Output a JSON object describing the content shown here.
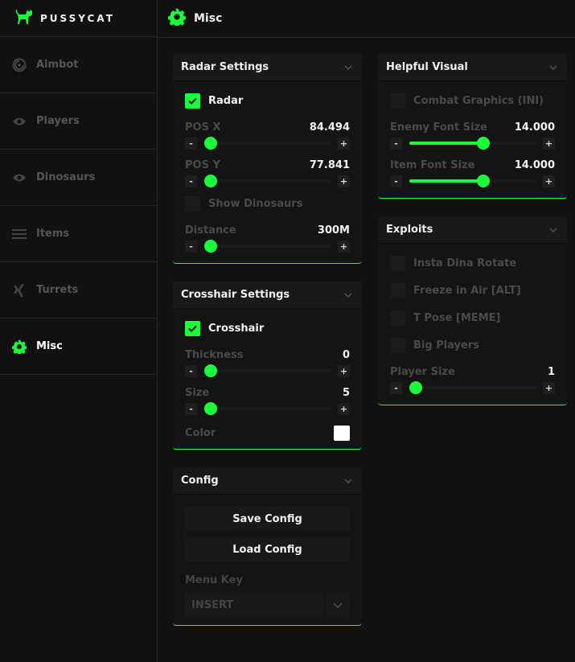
{
  "brand": {
    "name": "PUSSYCAT"
  },
  "accent": "#1aff3a",
  "header": {
    "title": "Misc",
    "icon": "gear-icon"
  },
  "sidebar": {
    "items": [
      {
        "label": "Aimbot",
        "icon": "radar-icon",
        "active": false
      },
      {
        "label": "Players",
        "icon": "eye-icon",
        "active": false
      },
      {
        "label": "Dinosaurs",
        "icon": "eye-icon",
        "active": false
      },
      {
        "label": "Items",
        "icon": "list-icon",
        "active": false
      },
      {
        "label": "Turrets",
        "icon": "x-logo-icon",
        "active": false
      },
      {
        "label": "Misc",
        "icon": "gear-icon",
        "active": true
      }
    ]
  },
  "columns": [
    [
      {
        "title": "Radar Settings",
        "items": [
          {
            "type": "check",
            "label": "Radar",
            "checked": true
          },
          {
            "type": "slider",
            "label": "POS X",
            "value": "84.494",
            "fraction": 0.0
          },
          {
            "type": "slider",
            "label": "POS Y",
            "value": "77.841",
            "fraction": 0.0
          },
          {
            "type": "check",
            "label": "Show Dinosaurs",
            "checked": false
          },
          {
            "type": "slider",
            "label": "Distance",
            "value": "300M",
            "fraction": 0.0
          }
        ]
      },
      {
        "title": "Crosshair Settings",
        "items": [
          {
            "type": "check",
            "label": "Crosshair",
            "checked": true
          },
          {
            "type": "slider",
            "label": "Thickness",
            "value": "0",
            "fraction": 0.0
          },
          {
            "type": "slider",
            "label": "Size",
            "value": "5",
            "fraction": 0.0
          },
          {
            "type": "color",
            "label": "Color",
            "color": "#ffffff"
          }
        ]
      },
      {
        "title": "Config",
        "items": [
          {
            "type": "button",
            "label": "Save Config"
          },
          {
            "type": "button",
            "label": "Load Config"
          },
          {
            "type": "select",
            "label": "Menu Key",
            "value": "INSERT"
          }
        ]
      }
    ],
    [
      {
        "title": "Helpful Visual",
        "items": [
          {
            "type": "check",
            "label": "Combat Graphics (INI)",
            "checked": false
          },
          {
            "type": "slider",
            "label": "Enemy Font Size",
            "value": "14.000",
            "fraction": 0.56
          },
          {
            "type": "slider",
            "label": "Item Font Size",
            "value": "14.000",
            "fraction": 0.56
          }
        ]
      },
      {
        "title": "Exploits",
        "items": [
          {
            "type": "check",
            "label": "Insta Dina Rotate",
            "checked": false
          },
          {
            "type": "check",
            "label": "Freeze in Air [ALT]",
            "checked": false
          },
          {
            "type": "check",
            "label": "T Pose [MEME]",
            "checked": false
          },
          {
            "type": "check",
            "label": "Big Players",
            "checked": false
          },
          {
            "type": "slider",
            "label": "Player Size",
            "value": "1",
            "fraction": 0.0
          }
        ]
      }
    ]
  ],
  "controls": {
    "minus": "-",
    "plus": "+"
  }
}
